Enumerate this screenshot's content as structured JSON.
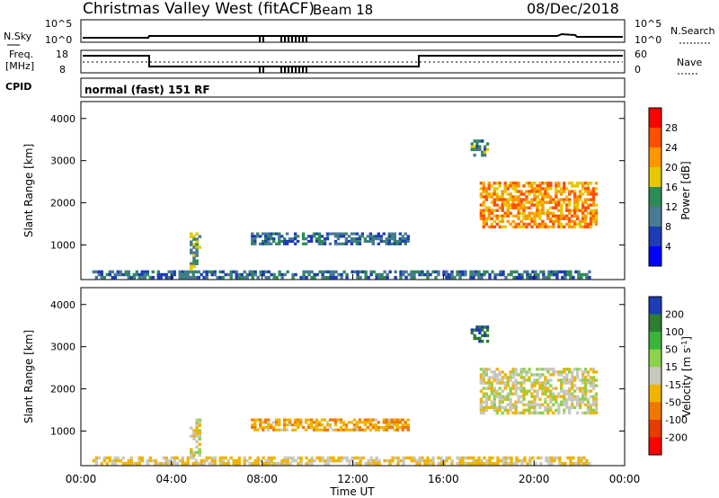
{
  "header": {
    "station": "Christmas Valley West (fitACF)",
    "beam": "Beam 18",
    "date": "08/Dec/2018"
  },
  "top_panels": {
    "nsky_label": "N.Sky",
    "nsky_tick_top": "10^5",
    "nsky_tick_bottom": "10^0",
    "nsearch_label": "N.Search",
    "nsearch_tick_top": "10^5",
    "nsearch_tick_bottom": "10^0",
    "freq_label_1": "Freq.",
    "freq_label_2": "[MHz]",
    "freq_tick_top": "18",
    "freq_tick_bottom": "8",
    "nave_label": "Nave",
    "nave_tick_top": "60",
    "nave_tick_bottom": "0",
    "cpid_label": "CPID",
    "cpid_value": "normal (fast) 151 RF"
  },
  "colorbars": {
    "power": {
      "label": "Power [dB]",
      "ticks": [
        "28",
        "24",
        "20",
        "16",
        "12",
        "8",
        "4"
      ],
      "colors": [
        "#ff0000",
        "#ff5000",
        "#ff9600",
        "#e6c800",
        "#2e8b57",
        "#4a7a96",
        "#1e3cb4",
        "#0000ff"
      ]
    },
    "velocity": {
      "label": "Velocity [m s",
      "label_sup": "-1",
      "label_end": "]",
      "ticks": [
        "200",
        "100",
        "50",
        "15",
        "-15",
        "-50",
        "-100",
        "-200"
      ],
      "colors": [
        "#1e3cb4",
        "#2e7d32",
        "#3cb43c",
        "#8cd24a",
        "#c8c8c0",
        "#f0b400",
        "#f07800",
        "#e63c00",
        "#ff0000"
      ]
    }
  },
  "chart_data": [
    {
      "type": "heatmap",
      "title": "Power",
      "ylabel": "Slant Range [km]",
      "ytick_labels": [
        "1000",
        "2000",
        "3000",
        "4000"
      ],
      "ylim": [
        180,
        4400
      ],
      "xlim": [
        0,
        24
      ],
      "colorbar_label": "Power [dB]",
      "colorbar_range": [
        0,
        30
      ],
      "regions": [
        {
          "name": "near-range ground scatter",
          "x": [
            0.5,
            22.5
          ],
          "y": [
            200,
            400
          ],
          "value": 10
        },
        {
          "name": "E-region echo near 05:00",
          "x": [
            4.8,
            5.3
          ],
          "y": [
            400,
            1300
          ],
          "value": 14
        },
        {
          "name": "mid-range echo",
          "x": [
            7.5,
            14.5
          ],
          "y": [
            1000,
            1300
          ],
          "value": 10
        },
        {
          "name": "evening F-region echo",
          "x": [
            17.6,
            22.8
          ],
          "y": [
            1400,
            2500
          ],
          "value": 22
        },
        {
          "name": "high-range echo",
          "x": [
            17.2,
            18.0
          ],
          "y": [
            3100,
            3500
          ],
          "value": 12
        }
      ]
    },
    {
      "type": "heatmap",
      "title": "Velocity",
      "xlabel": "Time UT",
      "ylabel": "Slant Range [km]",
      "xtick_labels": [
        "00:00",
        "04:00",
        "08:00",
        "12:00",
        "16:00",
        "20:00",
        "00:00"
      ],
      "ytick_labels": [
        "1000",
        "2000",
        "3000",
        "4000"
      ],
      "ylim": [
        180,
        4400
      ],
      "xlim": [
        0,
        24
      ],
      "colorbar_label": "Velocity [m s-1]",
      "colorbar_range": [
        -250,
        250
      ],
      "regions": [
        {
          "name": "near-range ground scatter",
          "x": [
            0.5,
            22.5
          ],
          "y": [
            200,
            400
          ],
          "value": -20
        },
        {
          "name": "E-region echo near 05:00",
          "x": [
            4.8,
            5.3
          ],
          "y": [
            400,
            1300
          ],
          "value": 0
        },
        {
          "name": "mid-range echo",
          "x": [
            7.5,
            14.5
          ],
          "y": [
            1000,
            1300
          ],
          "value": -40
        },
        {
          "name": "evening F-region echo",
          "x": [
            17.6,
            22.8
          ],
          "y": [
            1400,
            2500
          ],
          "value": 0
        },
        {
          "name": "high-range echo",
          "x": [
            17.2,
            18.0
          ],
          "y": [
            3100,
            3500
          ],
          "value": 200
        }
      ]
    }
  ]
}
